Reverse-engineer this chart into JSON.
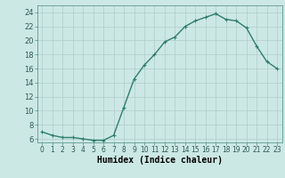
{
  "x": [
    0,
    1,
    2,
    3,
    4,
    5,
    6,
    7,
    8,
    9,
    10,
    11,
    12,
    13,
    14,
    15,
    16,
    17,
    18,
    19,
    20,
    21,
    22,
    23
  ],
  "y": [
    7.0,
    6.5,
    6.2,
    6.2,
    6.0,
    5.8,
    5.8,
    6.5,
    10.5,
    14.5,
    16.5,
    18.0,
    19.8,
    20.5,
    22.0,
    22.8,
    23.3,
    23.8,
    23.0,
    22.8,
    21.8,
    19.2,
    17.0,
    16.0
  ],
  "line_color": "#2e7d6e",
  "marker": "+",
  "marker_size": 3,
  "marker_edge_width": 0.8,
  "title": "",
  "xlabel": "Humidex (Indice chaleur)",
  "xlim": [
    -0.5,
    23.5
  ],
  "ylim": [
    5.5,
    25.0
  ],
  "yticks": [
    6,
    8,
    10,
    12,
    14,
    16,
    18,
    20,
    22,
    24
  ],
  "xticks": [
    0,
    1,
    2,
    3,
    4,
    5,
    6,
    7,
    8,
    9,
    10,
    11,
    12,
    13,
    14,
    15,
    16,
    17,
    18,
    19,
    20,
    21,
    22,
    23
  ],
  "bg_color": "#cce8e4",
  "grid_color": "#b0ccc8",
  "line_width": 1.0,
  "fig_bg": "#cce8e4",
  "xlabel_fontsize": 7,
  "tick_fontsize": 5.5,
  "ytick_fontsize": 6
}
